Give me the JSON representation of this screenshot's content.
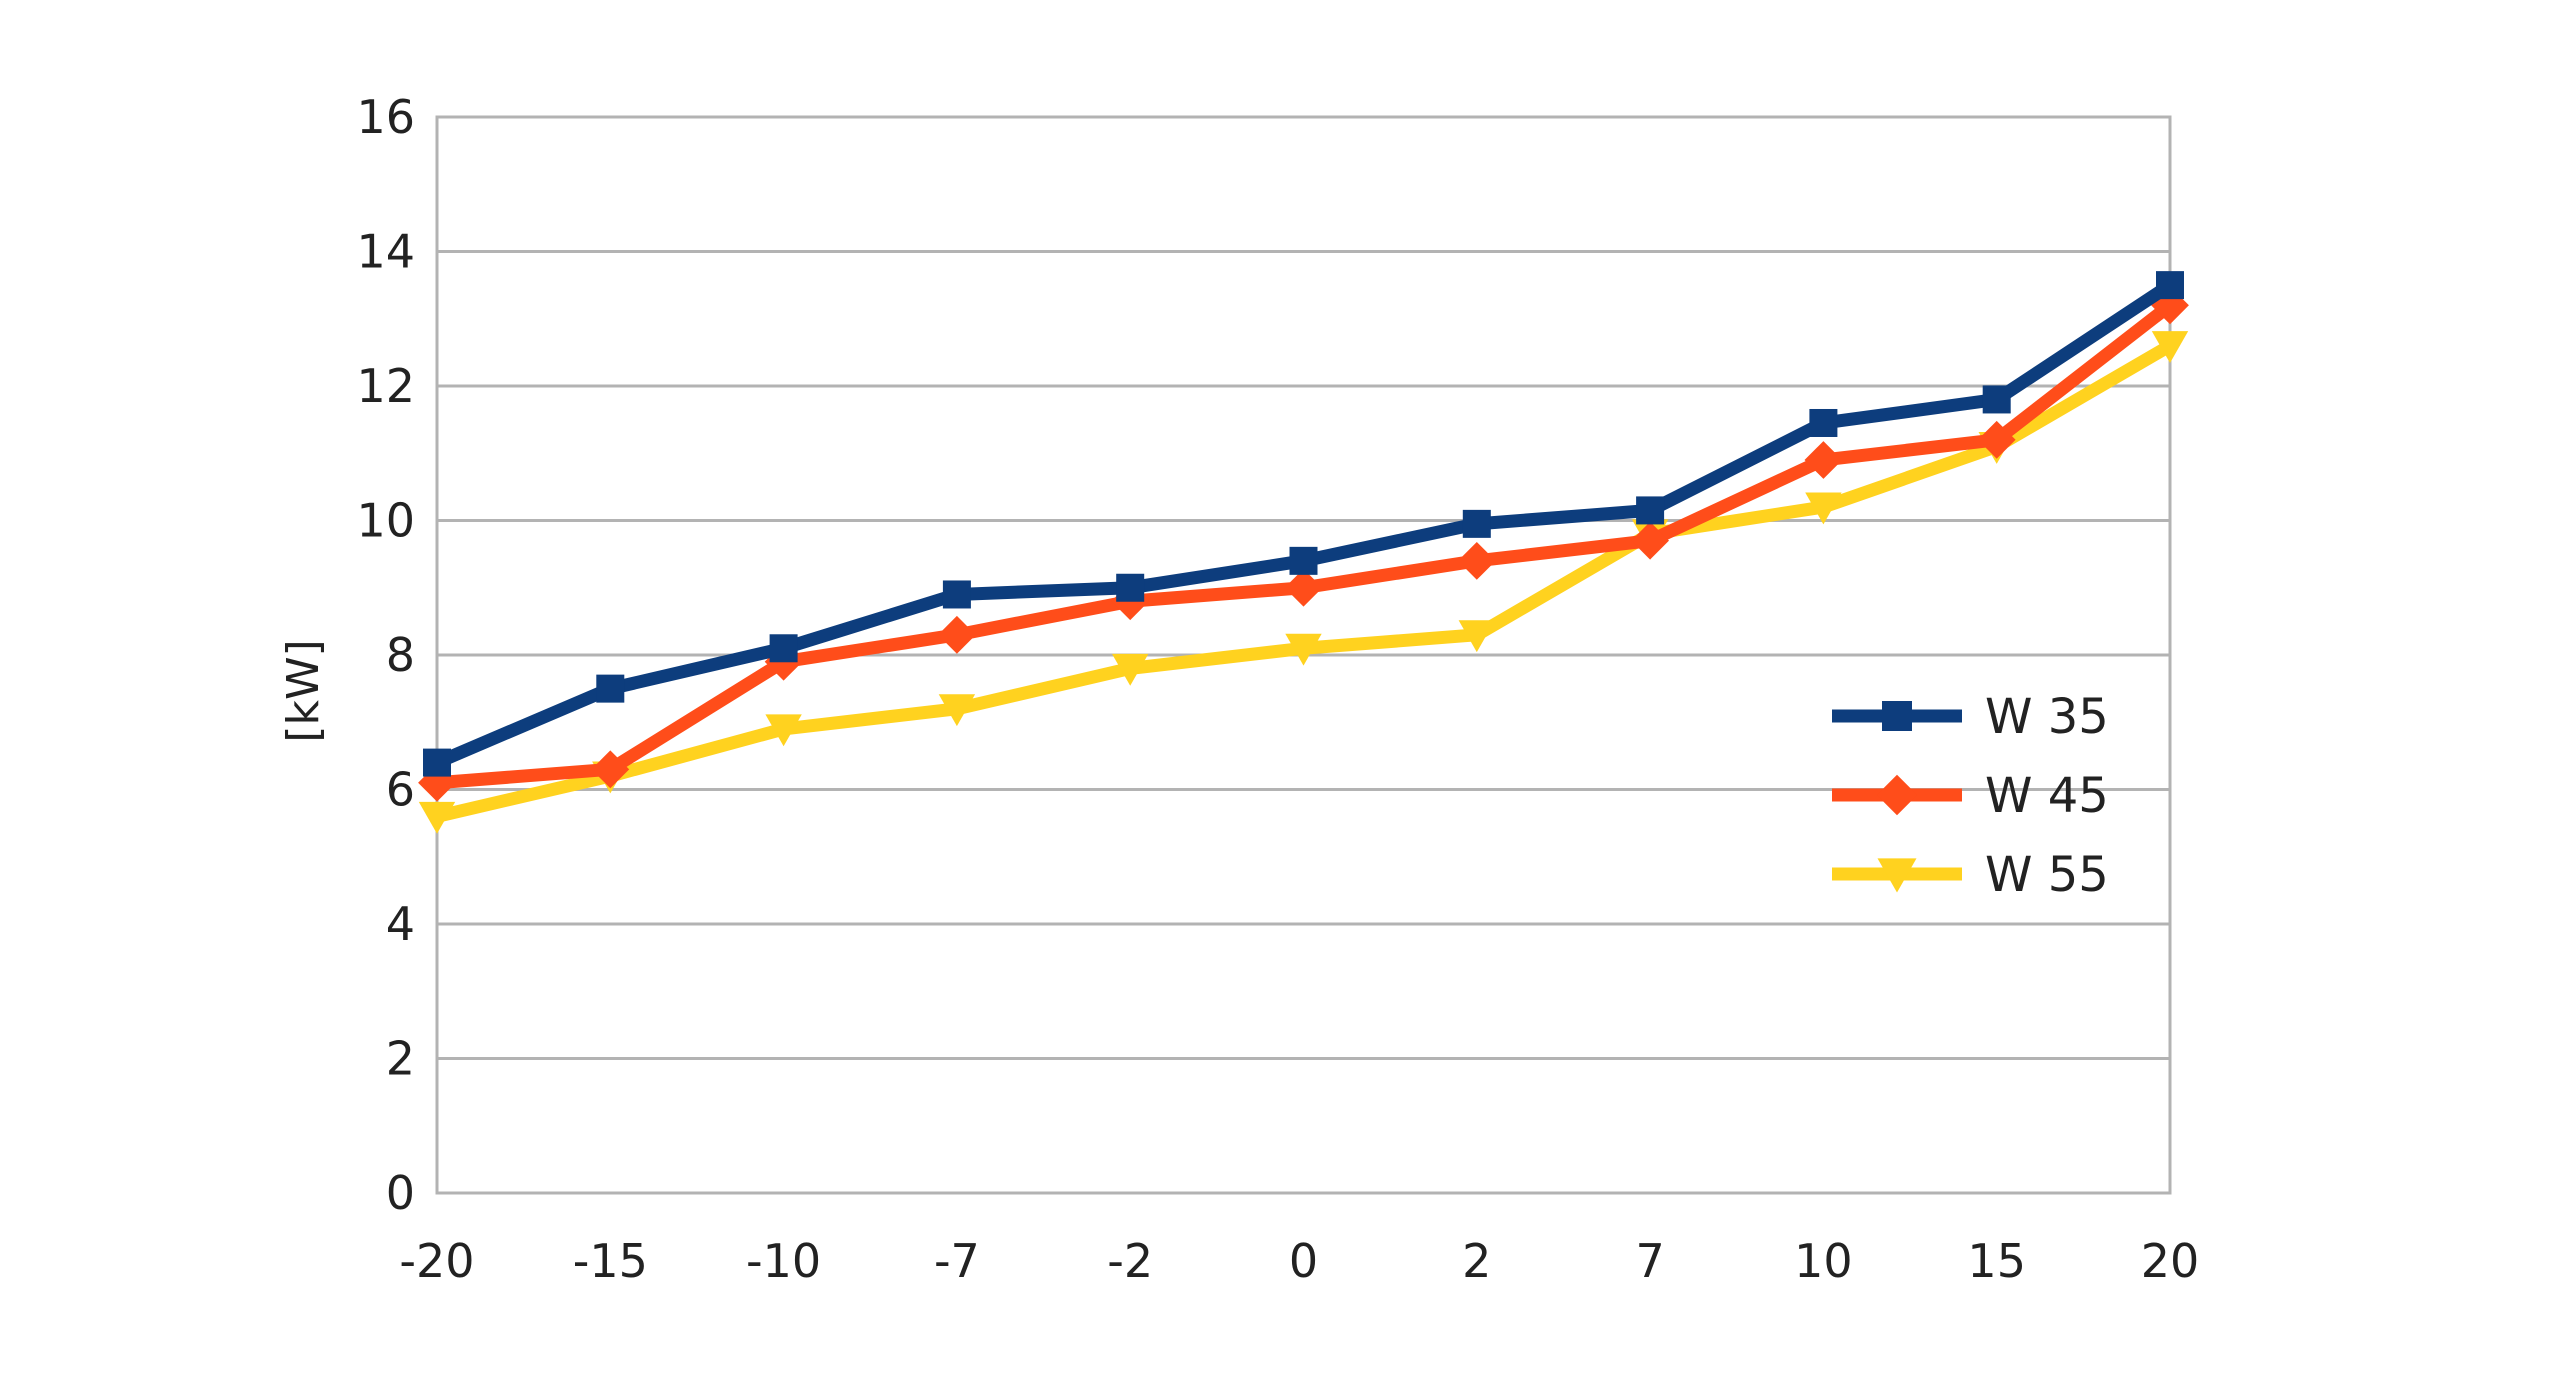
{
  "chart_data": {
    "type": "line",
    "title": "",
    "xlabel": "",
    "ylabel": "[kW]",
    "categories": [
      "-20",
      "-15",
      "-10",
      "-7",
      "-2",
      "0",
      "2",
      "7",
      "10",
      "15",
      "20"
    ],
    "ylim": [
      0,
      16
    ],
    "yticks": [
      "0",
      "2",
      "4",
      "6",
      "8",
      "10",
      "12",
      "14",
      "16"
    ],
    "grid": "horizontal",
    "legend_position": "right",
    "series": [
      {
        "name": "W 35",
        "color": "#0d3d7d",
        "marker": "square",
        "values": [
          6.4,
          7.5,
          8.1,
          8.9,
          9.0,
          9.4,
          9.95,
          10.15,
          11.45,
          11.8,
          13.5
        ]
      },
      {
        "name": "W 45",
        "color": "#ff4d1a",
        "marker": "diamond",
        "values": [
          6.1,
          6.3,
          7.9,
          8.3,
          8.8,
          9.0,
          9.4,
          9.7,
          10.9,
          11.2,
          13.2
        ]
      },
      {
        "name": "W 55",
        "color": "#ffd21f",
        "marker": "triangle-down",
        "values": [
          5.6,
          6.2,
          6.9,
          7.2,
          7.8,
          8.1,
          8.3,
          9.8,
          10.2,
          11.1,
          12.6
        ]
      }
    ]
  }
}
